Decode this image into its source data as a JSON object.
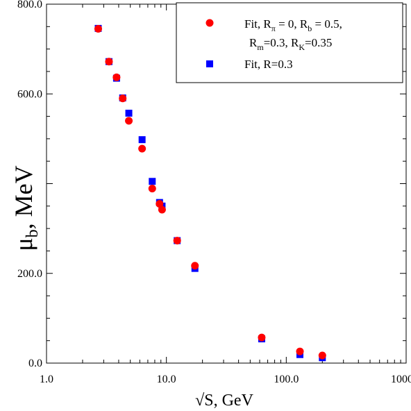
{
  "chart_data": {
    "type": "scatter",
    "xscale": "log",
    "xlim": [
      1.0,
      1000.0
    ],
    "ylim": [
      0,
      800
    ],
    "xticks": [
      "1.0",
      "10.0",
      "100.0",
      "1000.0"
    ],
    "yticks": [
      "0.0",
      "200.0",
      "600.0",
      "800.0"
    ],
    "xlabel": "√S, GeV",
    "ylabel": "μb, MeV",
    "legend_position": "top-right",
    "series": [
      {
        "name": "Fit, Rπ = 0, Rb = 0.5, Rm=0.3, RK=0.35",
        "marker": "circle",
        "color": "#ff0000",
        "x": [
          2.7,
          3.32,
          3.84,
          4.32,
          4.86,
          6.27,
          7.62,
          8.77,
          9.2,
          12.3,
          17.3,
          62.4,
          130,
          200
        ],
        "y": [
          745,
          672,
          637,
          590,
          540,
          478,
          389,
          355,
          342,
          273,
          217,
          57,
          26,
          17
        ]
      },
      {
        "name": "Fit, R=0.3",
        "marker": "square",
        "color": "#0000ff",
        "x": [
          2.7,
          3.32,
          3.84,
          4.32,
          4.86,
          6.27,
          7.62,
          8.77,
          9.2,
          12.3,
          17.3,
          62.4,
          130,
          200
        ],
        "y": [
          746,
          672,
          635,
          591,
          557,
          498,
          405,
          358,
          350,
          273,
          211,
          54,
          19,
          12
        ]
      }
    ],
    "legend": {
      "entry1_line1": "Fit, R",
      "entry1_sub_pi": "π",
      "entry1_mid1": " = 0, R",
      "entry1_sub_b": "b",
      "entry1_mid2": " = 0.5,",
      "entry1_line2_a": "R",
      "entry1_sub_m": "m",
      "entry1_line2_b": "=0.3, R",
      "entry1_sub_k": "K",
      "entry1_line2_c": "=0.35",
      "entry2": "Fit, R=0.3"
    },
    "ylabel_parts": {
      "mu": "μ",
      "sub": "b",
      "rest": ", MeV"
    }
  }
}
